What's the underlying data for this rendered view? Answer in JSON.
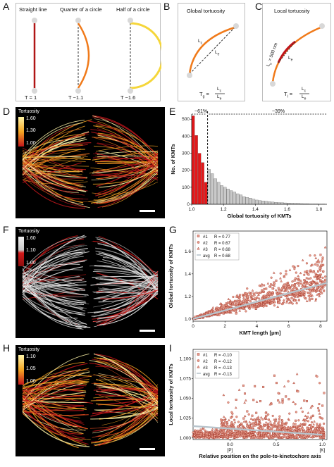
{
  "panels": {
    "A": {
      "letter": "A",
      "titles": [
        "Straight line",
        "Quarter of a circle",
        "Half of a circle"
      ],
      "values": [
        "T = 1",
        "T ~1.1",
        "T ~1.6"
      ]
    },
    "B": {
      "letter": "B",
      "title": "Global tortuosity",
      "lc": "L",
      "lcsub": "c",
      "le": "L",
      "lesub": "e",
      "formula_lhs": "T",
      "formula_lhs_sub": "g",
      "formula_num": "L",
      "formula_num_sub": "c",
      "formula_den": "L",
      "formula_den_sub": "e"
    },
    "C": {
      "letter": "C",
      "title": "Local tortuosity",
      "lc": "L",
      "lcsub": "c",
      "le": "L",
      "lesub": "e",
      "nm": "L = 500 nm",
      "nmsub": "c",
      "formula_lhs": "T",
      "formula_lhs_sub": "l",
      "formula_num": "L",
      "formula_num_sub": "c",
      "formula_den": "L",
      "formula_den_sub": "e"
    },
    "D": {
      "letter": "D",
      "legend_title": "Tortuosity",
      "ticks": [
        "1.60",
        "1.30",
        "1.00"
      ],
      "colors": {
        "top": "#fff5a8",
        "mid": "#f5a623",
        "bottom": "#c0161b"
      }
    },
    "E": {
      "letter": "E"
    },
    "F": {
      "letter": "F",
      "legend_title": "Tortuosity",
      "ticks": [
        "1.60",
        "1.10",
        "1.00"
      ],
      "colors": {
        "top": "#f0f0f0",
        "mid": "#c8c8c8",
        "bottom": "#d41a1a"
      }
    },
    "G": {
      "letter": "G"
    },
    "H": {
      "letter": "H",
      "legend_title": "Tortuosity",
      "ticks": [
        "1.10",
        "1.05",
        "1.00"
      ],
      "colors": {
        "top": "#fff5a8",
        "mid": "#f5a623",
        "bottom": "#c0161b"
      }
    },
    "I": {
      "letter": "I"
    }
  },
  "chart_data": [
    {
      "id": "E",
      "type": "bar",
      "xlabel": "Global tortuosity of KMTs",
      "ylabel": "No. of KMTs",
      "xlim": [
        1.0,
        1.85
      ],
      "ylim": [
        0,
        530
      ],
      "xticks": [
        "1.0",
        "1.2",
        "1.4",
        "1.6",
        "1.8"
      ],
      "yticks": [
        "0",
        "100",
        "200",
        "300",
        "400",
        "500"
      ],
      "threshold": 1.1,
      "bin_width": 0.02,
      "bin_starts": [
        1.0,
        1.02,
        1.04,
        1.06,
        1.08,
        1.1,
        1.12,
        1.14,
        1.16,
        1.18,
        1.2,
        1.22,
        1.24,
        1.26,
        1.28,
        1.3,
        1.32,
        1.34,
        1.36,
        1.38,
        1.4,
        1.42,
        1.44,
        1.46,
        1.48,
        1.5,
        1.52,
        1.54,
        1.56,
        1.58,
        1.6,
        1.62,
        1.64,
        1.66,
        1.68,
        1.7,
        1.72,
        1.74,
        1.76,
        1.78,
        1.8,
        1.82
      ],
      "values": [
        520,
        405,
        300,
        245,
        130,
        205,
        180,
        150,
        130,
        110,
        100,
        90,
        80,
        72,
        62,
        55,
        45,
        40,
        36,
        30,
        25,
        22,
        20,
        18,
        15,
        13,
        11,
        10,
        9,
        8,
        7,
        6,
        5,
        5,
        4,
        3,
        3,
        2,
        2,
        2,
        1,
        1
      ],
      "colors": {
        "below": "#e4171a",
        "above": "#c9c9c9"
      },
      "annotations": {
        "left_pct": "~61%",
        "right_pct": "~39%"
      }
    },
    {
      "id": "G",
      "type": "scatter",
      "xlabel": "KMT length [µm]",
      "ylabel": "Global tortuosity of KMTs",
      "xlim": [
        0,
        8.4
      ],
      "ylim": [
        0.98,
        1.78
      ],
      "xticks": [
        "0",
        "2",
        "4",
        "6",
        "8"
      ],
      "yticks": [
        "1.0",
        "1.2",
        "1.4",
        "1.6"
      ],
      "legend": [
        {
          "marker": "square",
          "label": "#1",
          "stat": "R = 0.77"
        },
        {
          "marker": "circle",
          "label": "#2",
          "stat": "R = 0.67"
        },
        {
          "marker": "triangle",
          "label": "#3",
          "stat": "R = 0.68"
        },
        {
          "marker": "line",
          "label": "avg",
          "stat": "R = 0.68"
        }
      ],
      "trend": {
        "x": [
          0,
          8.4
        ],
        "y": [
          1.0,
          1.32
        ]
      },
      "colors": {
        "point_fill": "#e8a08f",
        "point_edge": "#9b2a1e",
        "trend": "#b8c4cc"
      }
    },
    {
      "id": "I",
      "type": "scatter",
      "xlabel": "Relative position on the pole-to-kinetochore axis",
      "ylabel": "Local tortuosity of KMTs",
      "xlim": [
        -0.4,
        1.05
      ],
      "ylim": [
        0.998,
        1.112
      ],
      "xticks": [
        "0.0",
        "0.5",
        "1.0"
      ],
      "yticks": [
        "1.000",
        "1.025",
        "1.050",
        "1.075",
        "1.100"
      ],
      "secondary_xticks": [
        "[P]",
        "[K]"
      ],
      "legend": [
        {
          "marker": "square",
          "label": "#1",
          "stat": "R = -0.10"
        },
        {
          "marker": "circle",
          "label": "#2",
          "stat": "R = -0.12"
        },
        {
          "marker": "triangle",
          "label": "#3",
          "stat": "R = -0.13"
        },
        {
          "marker": "line",
          "label": "avg",
          "stat": "R = -0.13"
        }
      ],
      "trend": {
        "x": [
          -0.4,
          1.0
        ],
        "y": [
          1.015,
          1.004
        ]
      },
      "colors": {
        "point_fill": "#e8a08f",
        "point_edge": "#9b2a1e",
        "trend": "#b8c4cc"
      }
    }
  ]
}
